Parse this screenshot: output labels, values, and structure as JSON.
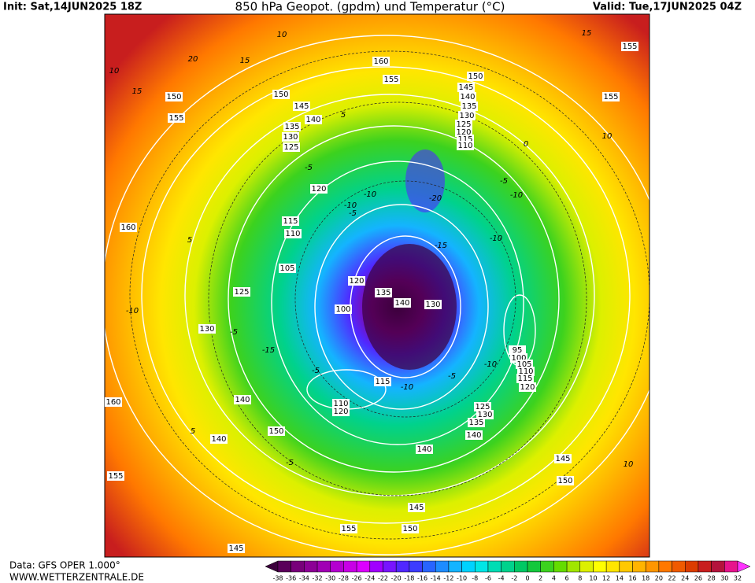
{
  "header": {
    "init": "Init: Sat,14JUN2025 18Z",
    "title": "850 hPa Geopot. (gpdm) und Temperatur (°C)",
    "valid": "Valid: Tue,17JUN2025 04Z"
  },
  "footer": {
    "data": "Data: GFS OPER 1.000°",
    "site": "WWW.WETTERZENTRALE.DE"
  },
  "colorbar": {
    "ticks": [
      -38,
      -36,
      -34,
      -32,
      -30,
      -28,
      -26,
      -24,
      -22,
      -20,
      -18,
      -16,
      -14,
      -12,
      -10,
      -8,
      -6,
      -4,
      -2,
      0,
      2,
      4,
      6,
      8,
      10,
      12,
      14,
      16,
      18,
      20,
      22,
      24,
      26,
      28,
      30,
      32
    ],
    "colors": [
      "#3c003c",
      "#5a005a",
      "#78007a",
      "#8c0096",
      "#a000b4",
      "#b400d0",
      "#c800e6",
      "#dc00ff",
      "#a000ff",
      "#7814ff",
      "#5028ff",
      "#3c3cff",
      "#2864ff",
      "#1e8cff",
      "#14b4ff",
      "#00d2ff",
      "#00e6e6",
      "#00dcb4",
      "#00d28c",
      "#00c864",
      "#14c83c",
      "#3cd21e",
      "#64dc00",
      "#a0e600",
      "#dcf000",
      "#ffff00",
      "#ffe600",
      "#ffc800",
      "#ffb400",
      "#ff9600",
      "#ff7800",
      "#f05a00",
      "#dc3c00",
      "#c81e1e",
      "#b4143c",
      "#e6148c",
      "#ff32ff"
    ]
  },
  "contour_labels": [
    160,
    155,
    150,
    145,
    140,
    135,
    130,
    125,
    120,
    115,
    110,
    155,
    155,
    150,
    155,
    150,
    145,
    140,
    135,
    130,
    125,
    120,
    115,
    110,
    105,
    125,
    130,
    100,
    120,
    135,
    140,
    130,
    95,
    100,
    105,
    110,
    115,
    120,
    115,
    110,
    120,
    125,
    130,
    135,
    140,
    140,
    145,
    150,
    145,
    150,
    155,
    145,
    140,
    150,
    140,
    160,
    160,
    155
  ],
  "temperature_labels": [
    20,
    15,
    10,
    15,
    10,
    10,
    0,
    -5,
    -10,
    -10,
    -5,
    -10,
    -15,
    -20,
    -10,
    -5,
    -5,
    -10,
    5,
    -15,
    -10,
    -5,
    -5,
    -10,
    -5,
    5,
    5,
    15,
    10
  ]
}
